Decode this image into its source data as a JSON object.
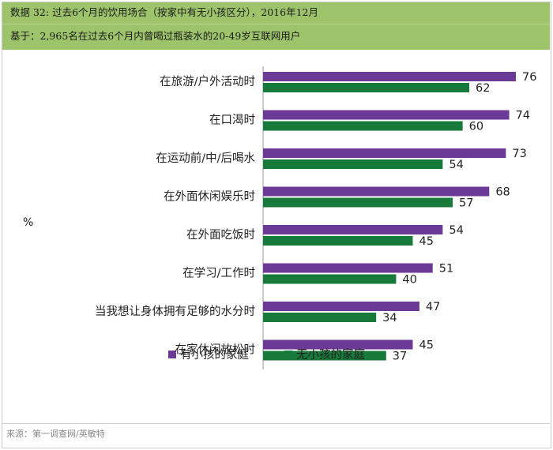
{
  "header": {
    "title": "数据 32: 过去6个月的饮用场合（按家中有无小孩区分），2016年12月",
    "subtitle": "基于：2,965名在过去6个月内曾喝过瓶装水的20-49岁互联网用户"
  },
  "footer": {
    "source": "来源：第一调查网/英敏特"
  },
  "chart_data": {
    "type": "bar",
    "orientation": "horizontal",
    "unit": "%",
    "categories": [
      "在旅游/户外活动时",
      "在口渴时",
      "在运动前/中/后喝水",
      "在外面休闲娱乐时",
      "在外面吃饭时",
      "在学习/工作时",
      "当我想让身体拥有足够的水分时",
      "在家休闲放松时"
    ],
    "series": [
      {
        "name": "有小孩的家庭",
        "color": "#6b3a96",
        "values": [
          76,
          74,
          73,
          68,
          54,
          51,
          47,
          45
        ]
      },
      {
        "name": "无小孩的家庭",
        "color": "#177a3a",
        "values": [
          62,
          60,
          54,
          57,
          45,
          40,
          34,
          37
        ]
      }
    ],
    "xlim": [
      0,
      80
    ],
    "grid": false,
    "legend_position": "bottom"
  }
}
